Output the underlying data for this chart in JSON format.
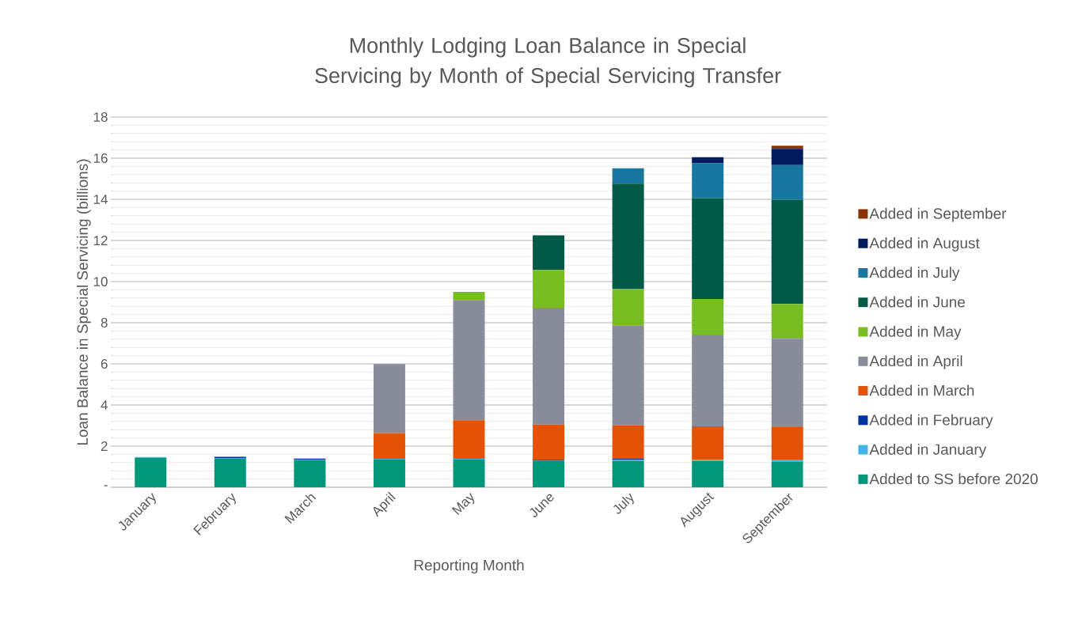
{
  "chart_data": {
    "type": "bar",
    "stacked": true,
    "title": "Monthly Lodging Loan Balance in Special Servicing by Month of Special Servicing Transfer",
    "xlabel": "Reporting Month",
    "ylabel": "Loan Balance in Special Servicing (billions)",
    "categories": [
      "January",
      "February",
      "March",
      "April",
      "May",
      "June",
      "July",
      "August",
      "September"
    ],
    "ylim": [
      0,
      18
    ],
    "yticks": [
      {
        "value": 0,
        "label": "-"
      },
      2,
      4,
      6,
      8,
      10,
      12,
      14,
      16,
      18
    ],
    "grid": "y",
    "legend": "right",
    "series": [
      {
        "name": "Added to SS before 2020",
        "color": "#00977a",
        "values": [
          1.43,
          1.38,
          1.32,
          1.35,
          1.35,
          1.29,
          1.29,
          1.29,
          1.23
        ]
      },
      {
        "name": "Added in January",
        "color": "#41b6e6",
        "values": [
          0.04,
          0.04,
          0.02,
          0.03,
          0.03,
          null,
          0.04,
          0.05,
          0.09
        ]
      },
      {
        "name": "Added in February",
        "color": "#0033a0",
        "values": [
          null,
          0.06,
          0.05,
          null,
          null,
          0.05,
          0.05,
          null,
          null
        ]
      },
      {
        "name": "Added in March",
        "color": "#e35205",
        "values": [
          null,
          null,
          null,
          1.25,
          1.88,
          1.71,
          1.63,
          1.62,
          1.6
        ]
      },
      {
        "name": "Added in April",
        "color": "#898d9a",
        "values": [
          null,
          null,
          null,
          3.36,
          5.85,
          5.68,
          4.86,
          4.46,
          4.3
        ]
      },
      {
        "name": "Added in May",
        "color": "#78be20",
        "values": [
          null,
          null,
          null,
          null,
          0.39,
          1.84,
          1.78,
          1.73,
          1.69
        ]
      },
      {
        "name": "Added in June",
        "color": "#005a46",
        "values": [
          null,
          null,
          null,
          null,
          null,
          1.68,
          5.11,
          4.91,
          5.06
        ]
      },
      {
        "name": "Added in July",
        "color": "#1777a0",
        "values": [
          null,
          null,
          null,
          null,
          null,
          null,
          0.75,
          1.69,
          1.69
        ]
      },
      {
        "name": "Added in August",
        "color": "#001a5e",
        "values": [
          null,
          null,
          null,
          null,
          null,
          null,
          null,
          0.3,
          0.79
        ]
      },
      {
        "name": "Added in September",
        "color": "#8a3300",
        "values": [
          null,
          null,
          null,
          null,
          null,
          null,
          null,
          null,
          0.16
        ]
      }
    ]
  }
}
